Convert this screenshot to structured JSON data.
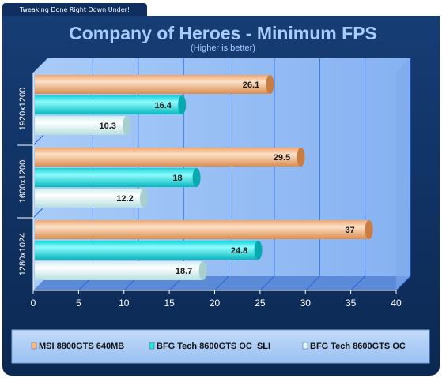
{
  "site_tagline": "Tweaking Done Right Down Under!",
  "colors": {
    "frame": "#0e2f5f",
    "plot": "#8eb8f4",
    "floor": "#5a8ad8",
    "msi": "#f5b987",
    "sli": "#1de6ea",
    "oc": "#dbf9f9",
    "title": "#a8ccff"
  },
  "chart_data": {
    "type": "bar",
    "orientation": "horizontal",
    "title": "Company of Heroes - Minimum FPS",
    "subtitle": "(Higher is better)",
    "categories": [
      "1920x1200",
      "1600x1200",
      "1280x1024"
    ],
    "series": [
      {
        "name": "MSI 8800GTS 640MB",
        "values": [
          26.1,
          29.5,
          37
        ]
      },
      {
        "name": "BFG Tech 8600GTS OC  SLI",
        "values": [
          16.4,
          18,
          24.8
        ]
      },
      {
        "name": "BFG Tech 8600GTS OC",
        "values": [
          10.3,
          12.2,
          18.7
        ]
      }
    ],
    "data_labels": [
      [
        "26.1",
        "29.5",
        "37"
      ],
      [
        "16.4",
        "18",
        "24.8"
      ],
      [
        "10.3",
        "12.2",
        "18.7"
      ]
    ],
    "xlim": [
      0,
      40
    ],
    "xticks": [
      0,
      5,
      10,
      15,
      20,
      25,
      30,
      35,
      40
    ],
    "xtick_labels": [
      "0",
      "5",
      "10",
      "15",
      "20",
      "25",
      "30",
      "35",
      "40"
    ],
    "grid": true,
    "legend_position": "bottom"
  }
}
